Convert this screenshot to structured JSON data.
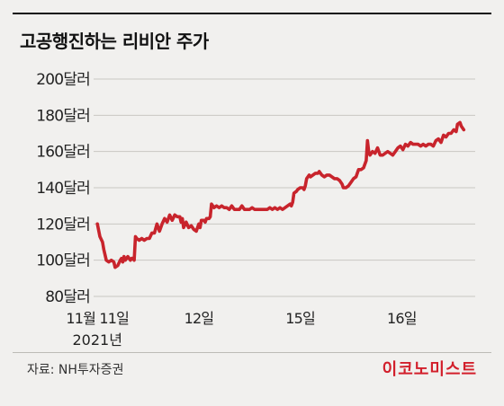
{
  "header": {
    "title": "고공행진하는 리비안 주가"
  },
  "footer": {
    "source": "자료: NH투자증권",
    "logo": "이코노미스트"
  },
  "chart_data": {
    "type": "line",
    "title": "고공행진하는 리비안 주가",
    "xlabel": "",
    "ylabel": "",
    "ylim": [
      80,
      200
    ],
    "y_ticks": [
      "200달러",
      "180달러",
      "160달러",
      "140달러",
      "120달러",
      "100달러",
      "80달러"
    ],
    "y_tick_values": [
      200,
      180,
      160,
      140,
      120,
      100,
      80
    ],
    "x_ticks": [
      {
        "label": "11월 11일",
        "sublabel": "2021년",
        "x": 0
      },
      {
        "label": "12일",
        "sublabel": "",
        "x": 80
      },
      {
        "label": "15일",
        "sublabel": "",
        "x": 160
      },
      {
        "label": "16일",
        "sublabel": "",
        "x": 240
      }
    ],
    "x_range": [
      -3,
      298
    ],
    "grid": true,
    "line_color": "#c8242c",
    "series": [
      {
        "values": [
          [
            0,
            120
          ],
          [
            2,
            113
          ],
          [
            4,
            110
          ],
          [
            5,
            106
          ],
          [
            7,
            100
          ],
          [
            9,
            99
          ],
          [
            11,
            100
          ],
          [
            13,
            99
          ],
          [
            14,
            96
          ],
          [
            16,
            97
          ],
          [
            18,
            100
          ],
          [
            19,
            101
          ],
          [
            20,
            99
          ],
          [
            21,
            102
          ],
          [
            22,
            100
          ],
          [
            24,
            102
          ],
          [
            26,
            100
          ],
          [
            27,
            101
          ],
          [
            28,
            101
          ],
          [
            29,
            100
          ],
          [
            30,
            113
          ],
          [
            31,
            112
          ],
          [
            33,
            111
          ],
          [
            35,
            112
          ],
          [
            37,
            111
          ],
          [
            39,
            112
          ],
          [
            41,
            112
          ],
          [
            43,
            115
          ],
          [
            45,
            115
          ],
          [
            47,
            120
          ],
          [
            49,
            116
          ],
          [
            51,
            120
          ],
          [
            53,
            123
          ],
          [
            55,
            121
          ],
          [
            57,
            125
          ],
          [
            59,
            122
          ],
          [
            61,
            125
          ],
          [
            63,
            124
          ],
          [
            65,
            124
          ],
          [
            66,
            121
          ],
          [
            67,
            123
          ],
          [
            68,
            118
          ],
          [
            70,
            121
          ],
          [
            72,
            118
          ],
          [
            74,
            119
          ],
          [
            76,
            117
          ],
          [
            78,
            116
          ],
          [
            80,
            120
          ],
          [
            81,
            118
          ],
          [
            82,
            122
          ],
          [
            84,
            122
          ],
          [
            85,
            121
          ],
          [
            86,
            123
          ],
          [
            88,
            123
          ],
          [
            89,
            124
          ],
          [
            90,
            131
          ],
          [
            92,
            129
          ],
          [
            94,
            130
          ],
          [
            96,
            129
          ],
          [
            98,
            130
          ],
          [
            100,
            129
          ],
          [
            102,
            129
          ],
          [
            104,
            128
          ],
          [
            106,
            130
          ],
          [
            108,
            128
          ],
          [
            110,
            128
          ],
          [
            112,
            128
          ],
          [
            114,
            130
          ],
          [
            116,
            128
          ],
          [
            118,
            128
          ],
          [
            120,
            128
          ],
          [
            122,
            129
          ],
          [
            124,
            128
          ],
          [
            126,
            128
          ],
          [
            128,
            128
          ],
          [
            130,
            128
          ],
          [
            132,
            128
          ],
          [
            134,
            128
          ],
          [
            136,
            129
          ],
          [
            138,
            128
          ],
          [
            140,
            129
          ],
          [
            142,
            128
          ],
          [
            144,
            129
          ],
          [
            146,
            128
          ],
          [
            148,
            129
          ],
          [
            150,
            130
          ],
          [
            152,
            131
          ],
          [
            153,
            130
          ],
          [
            154,
            132
          ],
          [
            155,
            137
          ],
          [
            157,
            138
          ],
          [
            158,
            139
          ],
          [
            160,
            140
          ],
          [
            162,
            140
          ],
          [
            163,
            139
          ],
          [
            164,
            141
          ],
          [
            165,
            145
          ],
          [
            167,
            147
          ],
          [
            168,
            146
          ],
          [
            170,
            147
          ],
          [
            172,
            148
          ],
          [
            174,
            148
          ],
          [
            175,
            149
          ],
          [
            177,
            147
          ],
          [
            179,
            146
          ],
          [
            181,
            147
          ],
          [
            183,
            147
          ],
          [
            185,
            146
          ],
          [
            187,
            145
          ],
          [
            189,
            145
          ],
          [
            191,
            144
          ],
          [
            193,
            142
          ],
          [
            194,
            140
          ],
          [
            196,
            140
          ],
          [
            198,
            141
          ],
          [
            200,
            143
          ],
          [
            202,
            145
          ],
          [
            204,
            146
          ],
          [
            206,
            150
          ],
          [
            208,
            150
          ],
          [
            210,
            151
          ],
          [
            212,
            155
          ],
          [
            213,
            166
          ],
          [
            214,
            160
          ],
          [
            215,
            158
          ],
          [
            217,
            160
          ],
          [
            219,
            159
          ],
          [
            221,
            162
          ],
          [
            223,
            158
          ],
          [
            225,
            158
          ],
          [
            227,
            159
          ],
          [
            229,
            160
          ],
          [
            231,
            159
          ],
          [
            233,
            158
          ],
          [
            235,
            160
          ],
          [
            237,
            162
          ],
          [
            239,
            163
          ],
          [
            241,
            161
          ],
          [
            243,
            164
          ],
          [
            245,
            163
          ],
          [
            247,
            165
          ],
          [
            249,
            164
          ],
          [
            251,
            164
          ],
          [
            253,
            164
          ],
          [
            255,
            163
          ],
          [
            257,
            164
          ],
          [
            259,
            163
          ],
          [
            261,
            164
          ],
          [
            263,
            164
          ],
          [
            265,
            163
          ],
          [
            267,
            166
          ],
          [
            269,
            167
          ],
          [
            271,
            165
          ],
          [
            273,
            169
          ],
          [
            275,
            168
          ],
          [
            277,
            170
          ],
          [
            279,
            170
          ],
          [
            281,
            172
          ],
          [
            283,
            171
          ],
          [
            284,
            175
          ],
          [
            286,
            176
          ],
          [
            287,
            174
          ],
          [
            289,
            172
          ]
        ]
      }
    ]
  }
}
